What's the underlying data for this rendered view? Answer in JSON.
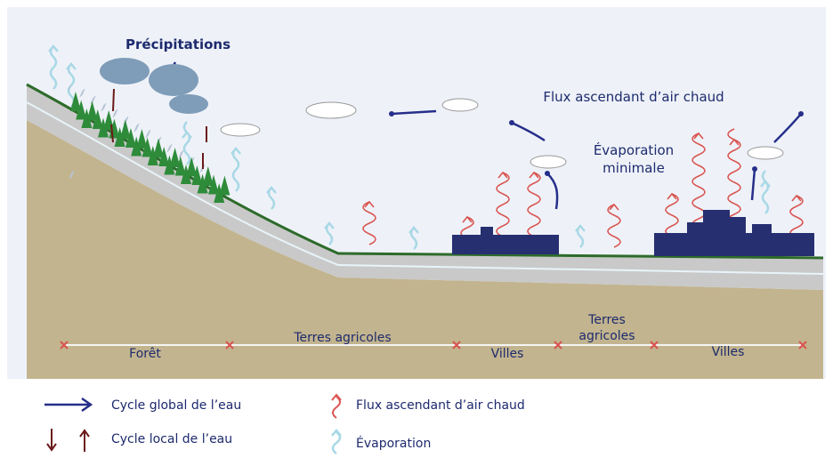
{
  "annotations": {
    "precipitation": "Précipitations",
    "updraft": "Flux ascendant d’air chaud",
    "min_evaporation": [
      "Évaporation",
      "minimale"
    ]
  },
  "zones": [
    {
      "label": "Forêt"
    },
    {
      "label": "Terres agricoles"
    },
    {
      "label": "Villes"
    },
    {
      "label": [
        "Terres",
        "agricoles"
      ]
    },
    {
      "label": "Villes"
    }
  ],
  "legend": [
    {
      "label": "Cycle global de l’eau"
    },
    {
      "label": "Cycle local de l’eau"
    },
    {
      "label": "Flux ascendant d’air chaud"
    },
    {
      "label": "Évaporation"
    }
  ]
}
